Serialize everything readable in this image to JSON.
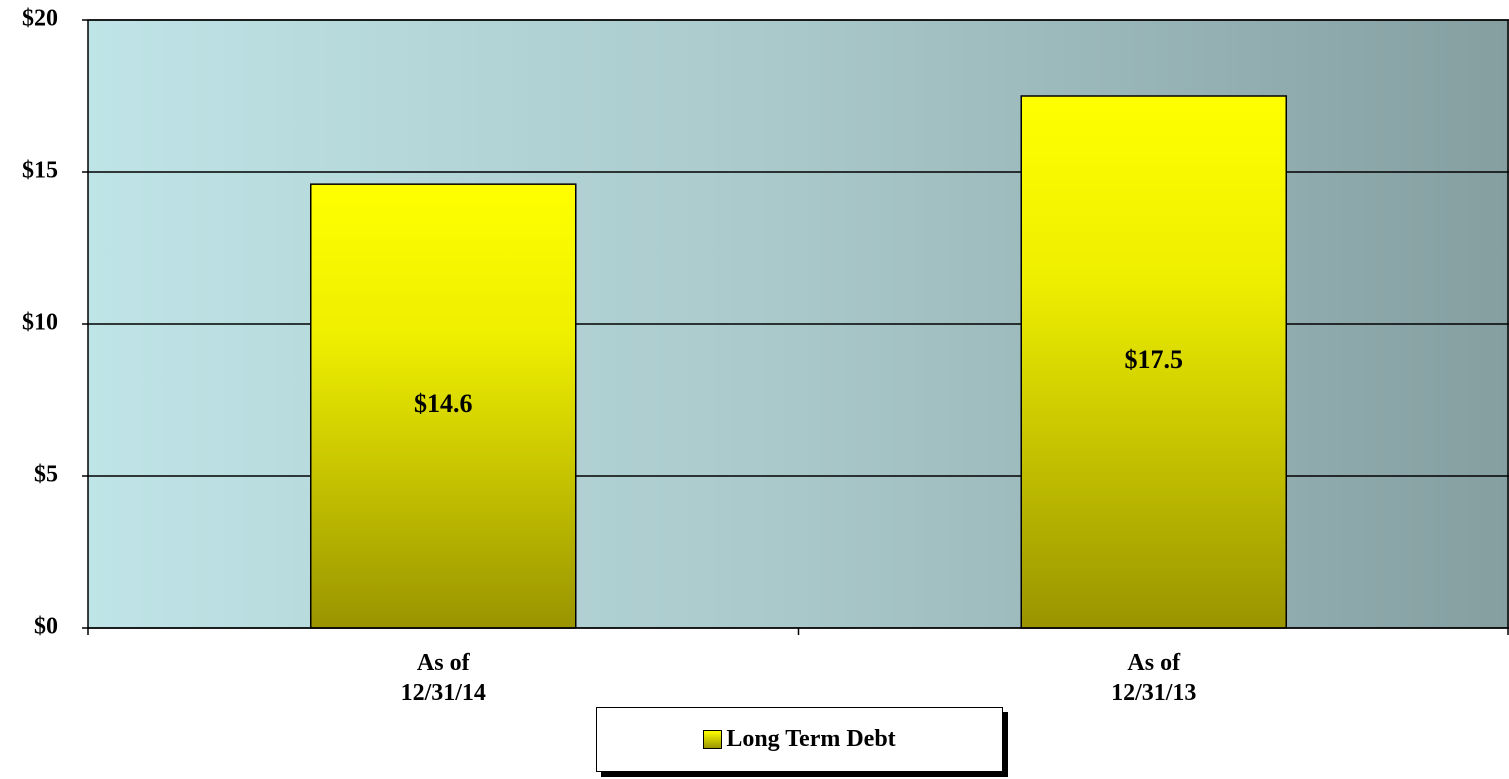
{
  "chart_data": {
    "type": "bar",
    "categories": [
      "As of\n12/31/14",
      "As of\n12/31/13"
    ],
    "series": [
      {
        "name": "Long Term Debt",
        "color": "#ffff00",
        "values": [
          14.6,
          17.5
        ],
        "value_labels": [
          "$14.6",
          "$17.5"
        ]
      }
    ],
    "ylim": [
      0,
      20
    ],
    "yticks": [
      {
        "value": 0,
        "label": "$0"
      },
      {
        "value": 5,
        "label": "$5"
      },
      {
        "value": 10,
        "label": "$10"
      },
      {
        "value": 15,
        "label": "$15"
      },
      {
        "value": 20,
        "label": "$20"
      }
    ],
    "grid": true
  }
}
